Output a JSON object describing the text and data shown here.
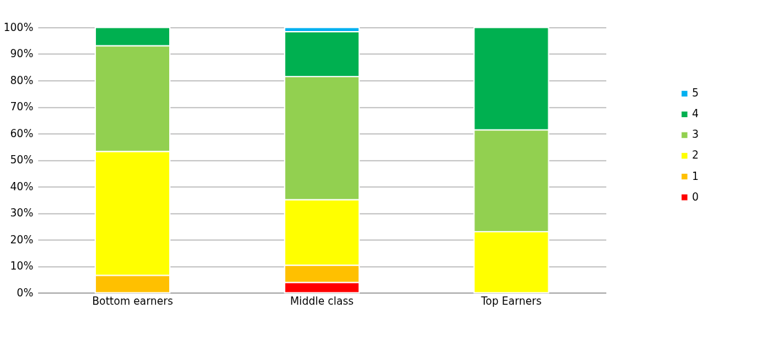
{
  "chart_data": {
    "type": "bar",
    "stacked": true,
    "categories": [
      "Bottom earners",
      "Middle class",
      "Top Earners"
    ],
    "series": [
      {
        "name": "0",
        "color": "#ff0000",
        "values": [
          null,
          3.9,
          null
        ]
      },
      {
        "name": "1",
        "color": "#ffc000",
        "values": [
          6.6,
          6.5,
          null
        ]
      },
      {
        "name": "2",
        "color": "#ffff00",
        "values": [
          46.7,
          24.7,
          23.0
        ]
      },
      {
        "name": "3",
        "color": "#92d050",
        "values": [
          39.8,
          46.4,
          38.4
        ]
      },
      {
        "name": "4",
        "color": "#00b050",
        "values": [
          6.9,
          16.9,
          38.6
        ]
      },
      {
        "name": "5",
        "color": "#00b0f0",
        "values": [
          null,
          1.6,
          null
        ]
      }
    ],
    "ylim": [
      0,
      100
    ],
    "yticks": [
      {
        "value": 0,
        "label": "0%"
      },
      {
        "value": 10,
        "label": "10%"
      },
      {
        "value": 20,
        "label": "20%"
      },
      {
        "value": 30,
        "label": "30%"
      },
      {
        "value": 40,
        "label": "40%"
      },
      {
        "value": 50,
        "label": "50%"
      },
      {
        "value": 60,
        "label": "60%"
      },
      {
        "value": 70,
        "label": "70%"
      },
      {
        "value": 80,
        "label": "80%"
      },
      {
        "value": 90,
        "label": "90%"
      },
      {
        "value": 100,
        "label": "100%"
      }
    ],
    "grid": "y",
    "legend": "right"
  }
}
